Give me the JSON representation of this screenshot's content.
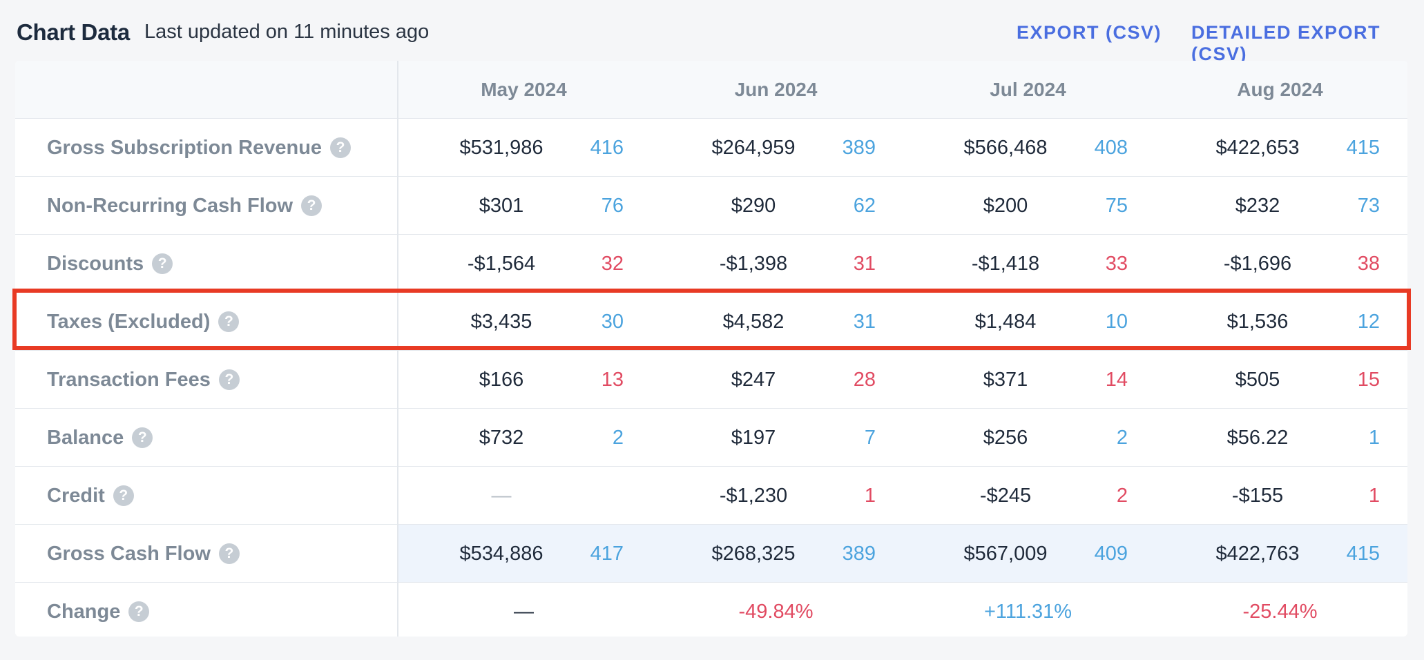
{
  "header": {
    "title": "Chart Data",
    "subtitle": "Last updated on 11 minutes ago",
    "export_label": "EXPORT (CSV)",
    "detailed_export_label": "DETAILED EXPORT (CSV)"
  },
  "colors": {
    "accent": "#4a6ee0",
    "positive_count": "#4ba3de",
    "negative_count": "#e14b62",
    "highlight_border": "#e83a24"
  },
  "table": {
    "months": [
      "May 2024",
      "Jun 2024",
      "Jul 2024",
      "Aug 2024"
    ],
    "help_icon": "?",
    "rows": [
      {
        "label": "Gross Subscription Revenue",
        "cells": [
          {
            "amount": "$531,986",
            "count": "416",
            "tone": "pos"
          },
          {
            "amount": "$264,959",
            "count": "389",
            "tone": "pos"
          },
          {
            "amount": "$566,468",
            "count": "408",
            "tone": "pos"
          },
          {
            "amount": "$422,653",
            "count": "415",
            "tone": "pos"
          }
        ]
      },
      {
        "label": "Non-Recurring Cash Flow",
        "cells": [
          {
            "amount": "$301",
            "count": "76",
            "tone": "pos"
          },
          {
            "amount": "$290",
            "count": "62",
            "tone": "pos"
          },
          {
            "amount": "$200",
            "count": "75",
            "tone": "pos"
          },
          {
            "amount": "$232",
            "count": "73",
            "tone": "pos"
          }
        ]
      },
      {
        "label": "Discounts",
        "cells": [
          {
            "amount": "-$1,564",
            "count": "32",
            "tone": "neg"
          },
          {
            "amount": "-$1,398",
            "count": "31",
            "tone": "neg"
          },
          {
            "amount": "-$1,418",
            "count": "33",
            "tone": "neg"
          },
          {
            "amount": "-$1,696",
            "count": "38",
            "tone": "neg"
          }
        ]
      },
      {
        "label": "Taxes (Excluded)",
        "cells": [
          {
            "amount": "$3,435",
            "count": "30",
            "tone": "pos"
          },
          {
            "amount": "$4,582",
            "count": "31",
            "tone": "pos"
          },
          {
            "amount": "$1,484",
            "count": "10",
            "tone": "pos"
          },
          {
            "amount": "$1,536",
            "count": "12",
            "tone": "pos"
          }
        ]
      },
      {
        "label": "Transaction Fees",
        "cells": [
          {
            "amount": "$166",
            "count": "13",
            "tone": "neg"
          },
          {
            "amount": "$247",
            "count": "28",
            "tone": "neg"
          },
          {
            "amount": "$371",
            "count": "14",
            "tone": "neg"
          },
          {
            "amount": "$505",
            "count": "15",
            "tone": "neg"
          }
        ]
      },
      {
        "label": "Balance",
        "cells": [
          {
            "amount": "$732",
            "count": "2",
            "tone": "pos"
          },
          {
            "amount": "$197",
            "count": "7",
            "tone": "pos"
          },
          {
            "amount": "$256",
            "count": "2",
            "tone": "pos"
          },
          {
            "amount": "$56.22",
            "count": "1",
            "tone": "pos"
          }
        ]
      },
      {
        "label": "Credit",
        "cells": [
          {
            "amount": "—",
            "count": "",
            "tone": "dash"
          },
          {
            "amount": "-$1,230",
            "count": "1",
            "tone": "neg"
          },
          {
            "amount": "-$245",
            "count": "2",
            "tone": "neg"
          },
          {
            "amount": "-$155",
            "count": "1",
            "tone": "neg"
          }
        ]
      },
      {
        "label": "Gross Cash Flow",
        "cells": [
          {
            "amount": "$534,886",
            "count": "417",
            "tone": "pos"
          },
          {
            "amount": "$268,325",
            "count": "389",
            "tone": "pos"
          },
          {
            "amount": "$567,009",
            "count": "409",
            "tone": "pos"
          },
          {
            "amount": "$422,763",
            "count": "415",
            "tone": "pos"
          }
        ]
      }
    ],
    "change_row": {
      "label": "Change",
      "values": [
        {
          "text": "—",
          "tone": "neutral"
        },
        {
          "text": "-49.84%",
          "tone": "neg"
        },
        {
          "text": "+111.31%",
          "tone": "pos"
        },
        {
          "text": "-25.44%",
          "tone": "neg"
        }
      ]
    }
  }
}
